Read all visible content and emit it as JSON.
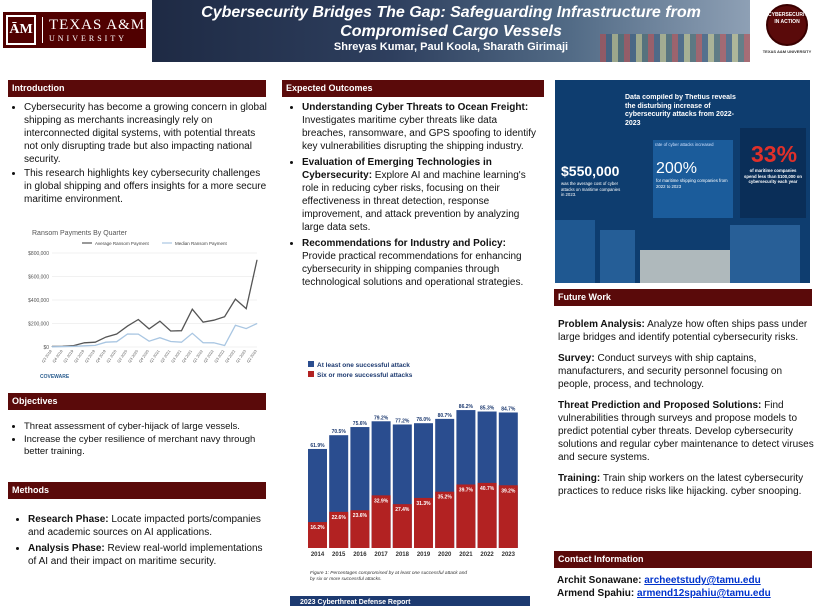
{
  "header": {
    "title_line1": "Cybersecurity Bridges The Gap: Safeguarding Infrastructure from",
    "title_line2": "Compromised Cargo Vessels",
    "authors": "Shreyas Kumar, Paul Koola, Sharath Girimaji",
    "tamu_logo_text": "TEXAS A&M",
    "tamu_logo_sub": "UNIVERSITY",
    "tamu_monogram": "ĀM",
    "coa_logo_text": "CYBERSECURITY IN ACTION",
    "coa_logo_caption": "TEXAS A&M UNIVERSITY"
  },
  "introduction": {
    "heading": "Introduction",
    "bullets": [
      "Cybersecurity has become a growing concern in global shipping as merchants increasingly rely on interconnected digital systems, with potential threats not only disrupting trade but also impacting national security.",
      "This research highlights key cybersecurity challenges in global shipping and offers insights for a more secure maritime environment."
    ]
  },
  "objectives": {
    "heading": "Objectives",
    "bullets": [
      "Threat assessment of cyber-hijack of large vessels.",
      "Increase the cyber resilience of merchant navy through better training."
    ]
  },
  "methods": {
    "heading": "Methods",
    "items": [
      {
        "lead": "Research Phase:",
        "text": " Locate impacted ports/companies and academic sources on AI applications."
      },
      {
        "lead": "Analysis Phase:",
        "text": " Review real-world implementations of AI and their impact on maritime security."
      }
    ]
  },
  "expected": {
    "heading": "Expected Outcomes",
    "items": [
      {
        "lead": "Understanding Cyber Threats to Ocean Freight:",
        "text": " Investigates maritime cyber threats like data breaches, ransomware, and GPS spoofing to identify key vulnerabilities disrupting the shipping industry."
      },
      {
        "lead": "Evaluation of Emerging Technologies in Cybersecurity:",
        "text": " Explore AI and machine learning's role in reducing cyber risks, focusing on their effectiveness in threat detection, response improvement, and attack prevention by analyzing large data sets."
      },
      {
        "lead": "Recommendations for Industry and Policy:",
        "text": " Provide practical recommendations for enhancing cybersecurity in shipping companies through technological solutions and operational strategies."
      }
    ]
  },
  "future": {
    "heading": "Future Work",
    "items": [
      {
        "lead": "Problem Analysis:",
        "text": " Analyze how often ships pass under large bridges and identify potential cybersecurity risks."
      },
      {
        "lead": "Survey:",
        "text": " Conduct surveys with ship captains, manufacturers, and security personnel focusing on people, process, and technology."
      },
      {
        "lead": "Threat Prediction and Proposed Solutions:",
        "text": " Find vulnerabilities through surveys and propose models to predict potential cyber threats. Develop cybersecurity solutions and regular cyber maintenance to detect viruses and secure systems."
      },
      {
        "lead": "Training:",
        "text": " Train ship workers on the latest cybersecurity practices to reduce risks like hijacking. cyber snooping."
      }
    ]
  },
  "contact": {
    "heading": "Contact Information",
    "people": [
      {
        "name": "Archit Sonawane:",
        "email": "archeetstudy@tamu.edu"
      },
      {
        "name": "Armend Spahiu:",
        "email": "armend12spahiu@tamu.edu"
      }
    ]
  },
  "infographic": {
    "headline": "Data compiled by Thetius reveals the disturbing increase of cybersecurity attacks from 2022-2023",
    "stat1": "$550,000",
    "stat1_desc": "was the average cost of cyber attacks on maritime companies in 2023.",
    "stat2": "200%",
    "stat2_label": "rate of cyber attacks increased",
    "stat2_desc": "for maritime shipping companies from 2022 to 2023",
    "stat3": "33%",
    "stat3_desc": "of maritime companies spend less than $100,000 on cybersecurity each year"
  },
  "chart_data": [
    {
      "type": "line",
      "title": "Ransom Payments By Quarter",
      "legend": [
        "Average Ransom Payment",
        "Median Ransom Payment"
      ],
      "legend_position": "top",
      "x": [
        "Q3 2018",
        "Q4 2018",
        "Q1 2019",
        "Q2 2019",
        "Q3 2019",
        "Q4 2019",
        "Q1 2020",
        "Q2 2020",
        "Q3 2020",
        "Q4 2020",
        "Q1 2021",
        "Q2 2021",
        "Q3 2021",
        "Q4 2021",
        "Q1 2022",
        "Q2 2022",
        "Q3 2022",
        "Q4 2022",
        "Q1 2023",
        "Q2 2023"
      ],
      "yticks": [
        "$0",
        "$200,000",
        "$400,000",
        "$600,000",
        "$800,000"
      ],
      "ylim": [
        0,
        800000
      ],
      "series": [
        {
          "name": "Average Ransom Payment",
          "values": [
            5000,
            6000,
            12000,
            36000,
            41000,
            84000,
            111000,
            178000,
            234000,
            154000,
            220000,
            136000,
            139000,
            322000,
            211000,
            228000,
            258000,
            408000,
            327000,
            740000
          ]
        },
        {
          "name": "Median Ransom Payment",
          "values": [
            2000,
            3000,
            5000,
            10000,
            14000,
            41000,
            45000,
            111000,
            110000,
            49000,
            79000,
            47000,
            41000,
            117000,
            37000,
            36000,
            13000,
            185000,
            157000,
            200000
          ]
        }
      ],
      "grid": true,
      "source_logo": "COVEWARE"
    },
    {
      "type": "bar",
      "legend": [
        "At least one successful attack",
        "Six or more successful attacks"
      ],
      "legend_position": "top-left",
      "categories": [
        "2014",
        "2015",
        "2016",
        "2017",
        "2018",
        "2019",
        "2020",
        "2021",
        "2022",
        "2023"
      ],
      "series": [
        {
          "name": "At least one successful attack",
          "values": [
            61.9,
            70.5,
            75.6,
            79.2,
            77.2,
            78.0,
            80.7,
            86.2,
            85.3,
            84.7
          ],
          "labels": [
            "61.9%",
            "70.5%",
            "75.6%",
            "79.2%",
            "77.2%",
            "78.0%",
            "80.7%",
            "86.2%",
            "85.3%",
            "84.7%"
          ]
        },
        {
          "name": "Six or more successful attacks",
          "values": [
            16.2,
            22.6,
            23.6,
            32.9,
            27.4,
            31.3,
            35.2,
            39.7,
            40.7,
            39.2
          ],
          "labels": [
            "16.2%",
            "22.6%",
            "23.6%",
            "32.9%",
            "27.4%",
            "31.3%",
            "35.2%",
            "39.7%",
            "40.7%",
            "39.2%"
          ]
        }
      ],
      "caption": "Figure 1: Percentages compromised by at least one successful attack and by six or more successful attacks.",
      "footer": "2023 Cyberthreat Defense Report"
    }
  ]
}
